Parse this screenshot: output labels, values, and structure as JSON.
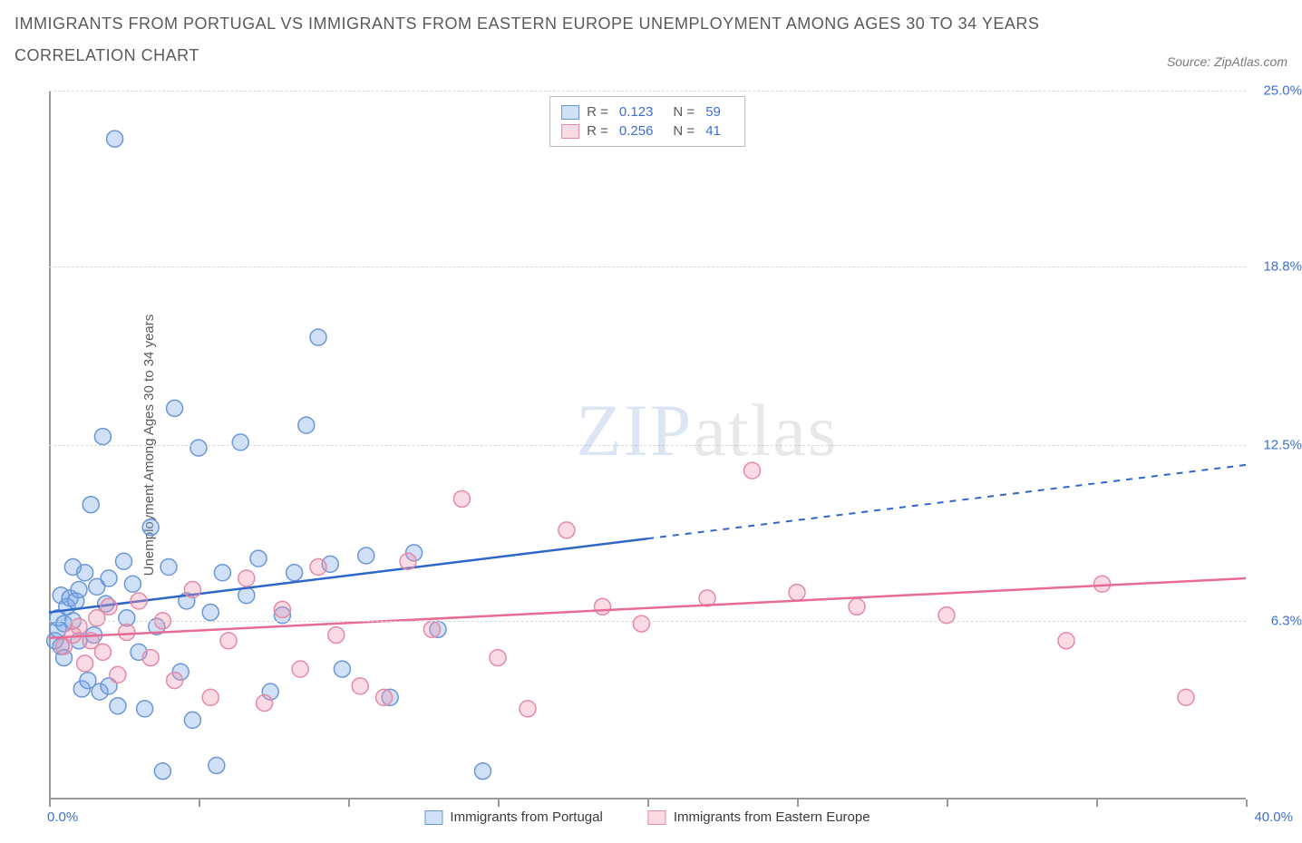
{
  "title_line1": "Immigrants from Portugal vs Immigrants from Eastern Europe Unemployment Among Ages 30 to 34 years",
  "title_line2": "Correlation Chart",
  "source_label": "Source: ZipAtlas.com",
  "y_axis_title": "Unemployment Among Ages 30 to 34 years",
  "watermark_zip": "ZIP",
  "watermark_atlas": "atlas",
  "chart": {
    "type": "scatter",
    "background_color": "#ffffff",
    "grid_dash_color": "#d8d8d8",
    "axis_color": "#9a9a9a",
    "tick_label_color": "#3b6fd6",
    "xlim": [
      0,
      40
    ],
    "ylim": [
      0,
      25
    ],
    "x_ticks": [
      0,
      5,
      10,
      15,
      20,
      25,
      30,
      35,
      40
    ],
    "x_label_min": "0.0%",
    "x_label_max": "40.0%",
    "y_ticks": [
      {
        "v": 6.3,
        "label": "6.3%"
      },
      {
        "v": 12.5,
        "label": "12.5%"
      },
      {
        "v": 18.8,
        "label": "18.8%"
      },
      {
        "v": 25.0,
        "label": "25.0%"
      }
    ],
    "series": [
      {
        "key": "portugal",
        "name": "Immigrants from Portugal",
        "fill": "rgba(120,165,230,0.35)",
        "stroke": "#6a97d8",
        "line_color": "#2f67c9",
        "trend_solid": {
          "x1": 0,
          "y1": 6.6,
          "x2": 20,
          "y2": 9.2
        },
        "trend_dash": {
          "x1": 20,
          "y1": 9.2,
          "x2": 40,
          "y2": 11.8
        },
        "marker_r": 9,
        "R": "0.123",
        "N": "59",
        "points": [
          [
            0.2,
            5.6
          ],
          [
            0.3,
            6.0
          ],
          [
            0.3,
            6.4
          ],
          [
            0.4,
            5.4
          ],
          [
            0.4,
            7.2
          ],
          [
            0.5,
            6.2
          ],
          [
            0.5,
            5.0
          ],
          [
            0.6,
            6.8
          ],
          [
            0.7,
            7.1
          ],
          [
            0.8,
            8.2
          ],
          [
            0.8,
            6.3
          ],
          [
            0.9,
            7.0
          ],
          [
            1.0,
            5.6
          ],
          [
            1.0,
            7.4
          ],
          [
            1.1,
            3.9
          ],
          [
            1.2,
            8.0
          ],
          [
            1.3,
            4.2
          ],
          [
            1.4,
            10.4
          ],
          [
            1.5,
            5.8
          ],
          [
            1.6,
            7.5
          ],
          [
            1.7,
            3.8
          ],
          [
            1.8,
            12.8
          ],
          [
            1.9,
            6.9
          ],
          [
            2.0,
            7.8
          ],
          [
            2.0,
            4.0
          ],
          [
            2.2,
            23.3
          ],
          [
            2.3,
            3.3
          ],
          [
            2.5,
            8.4
          ],
          [
            2.6,
            6.4
          ],
          [
            2.8,
            7.6
          ],
          [
            3.0,
            5.2
          ],
          [
            3.2,
            3.2
          ],
          [
            3.4,
            9.6
          ],
          [
            3.6,
            6.1
          ],
          [
            3.8,
            1.0
          ],
          [
            4.0,
            8.2
          ],
          [
            4.2,
            13.8
          ],
          [
            4.4,
            4.5
          ],
          [
            4.6,
            7.0
          ],
          [
            4.8,
            2.8
          ],
          [
            5.0,
            12.4
          ],
          [
            5.4,
            6.6
          ],
          [
            5.6,
            1.2
          ],
          [
            5.8,
            8.0
          ],
          [
            6.4,
            12.6
          ],
          [
            6.6,
            7.2
          ],
          [
            7.0,
            8.5
          ],
          [
            7.4,
            3.8
          ],
          [
            7.8,
            6.5
          ],
          [
            8.2,
            8.0
          ],
          [
            8.6,
            13.2
          ],
          [
            9.0,
            16.3
          ],
          [
            9.4,
            8.3
          ],
          [
            9.8,
            4.6
          ],
          [
            10.6,
            8.6
          ],
          [
            11.4,
            3.6
          ],
          [
            12.2,
            8.7
          ],
          [
            14.5,
            1.0
          ],
          [
            13.0,
            6.0
          ]
        ]
      },
      {
        "key": "eastern_europe",
        "name": "Immigrants from Eastern Europe",
        "fill": "rgba(240,150,175,0.35)",
        "stroke": "#e58aa6",
        "line_color": "#e86b93",
        "trend_solid": {
          "x1": 0,
          "y1": 5.7,
          "x2": 40,
          "y2": 7.8
        },
        "trend_dash": null,
        "marker_r": 9,
        "R": "0.256",
        "N": "41",
        "points": [
          [
            0.5,
            5.4
          ],
          [
            0.8,
            5.8
          ],
          [
            1.0,
            6.1
          ],
          [
            1.2,
            4.8
          ],
          [
            1.4,
            5.6
          ],
          [
            1.6,
            6.4
          ],
          [
            1.8,
            5.2
          ],
          [
            2.0,
            6.8
          ],
          [
            2.3,
            4.4
          ],
          [
            2.6,
            5.9
          ],
          [
            3.0,
            7.0
          ],
          [
            3.4,
            5.0
          ],
          [
            3.8,
            6.3
          ],
          [
            4.2,
            4.2
          ],
          [
            4.8,
            7.4
          ],
          [
            5.4,
            3.6
          ],
          [
            6.0,
            5.6
          ],
          [
            6.6,
            7.8
          ],
          [
            7.2,
            3.4
          ],
          [
            7.8,
            6.7
          ],
          [
            8.4,
            4.6
          ],
          [
            9.0,
            8.2
          ],
          [
            9.6,
            5.8
          ],
          [
            10.4,
            4.0
          ],
          [
            11.2,
            3.6
          ],
          [
            12.0,
            8.4
          ],
          [
            12.8,
            6.0
          ],
          [
            13.8,
            10.6
          ],
          [
            15.0,
            5.0
          ],
          [
            16.0,
            3.2
          ],
          [
            17.3,
            9.5
          ],
          [
            18.5,
            6.8
          ],
          [
            19.8,
            6.2
          ],
          [
            22.0,
            7.1
          ],
          [
            23.5,
            11.6
          ],
          [
            25.0,
            7.3
          ],
          [
            27.0,
            6.8
          ],
          [
            34.0,
            5.6
          ],
          [
            35.2,
            7.6
          ],
          [
            38.0,
            3.6
          ],
          [
            30.0,
            6.5
          ]
        ]
      }
    ]
  },
  "legend": {
    "r_label": "R =",
    "n_label": "N ="
  }
}
